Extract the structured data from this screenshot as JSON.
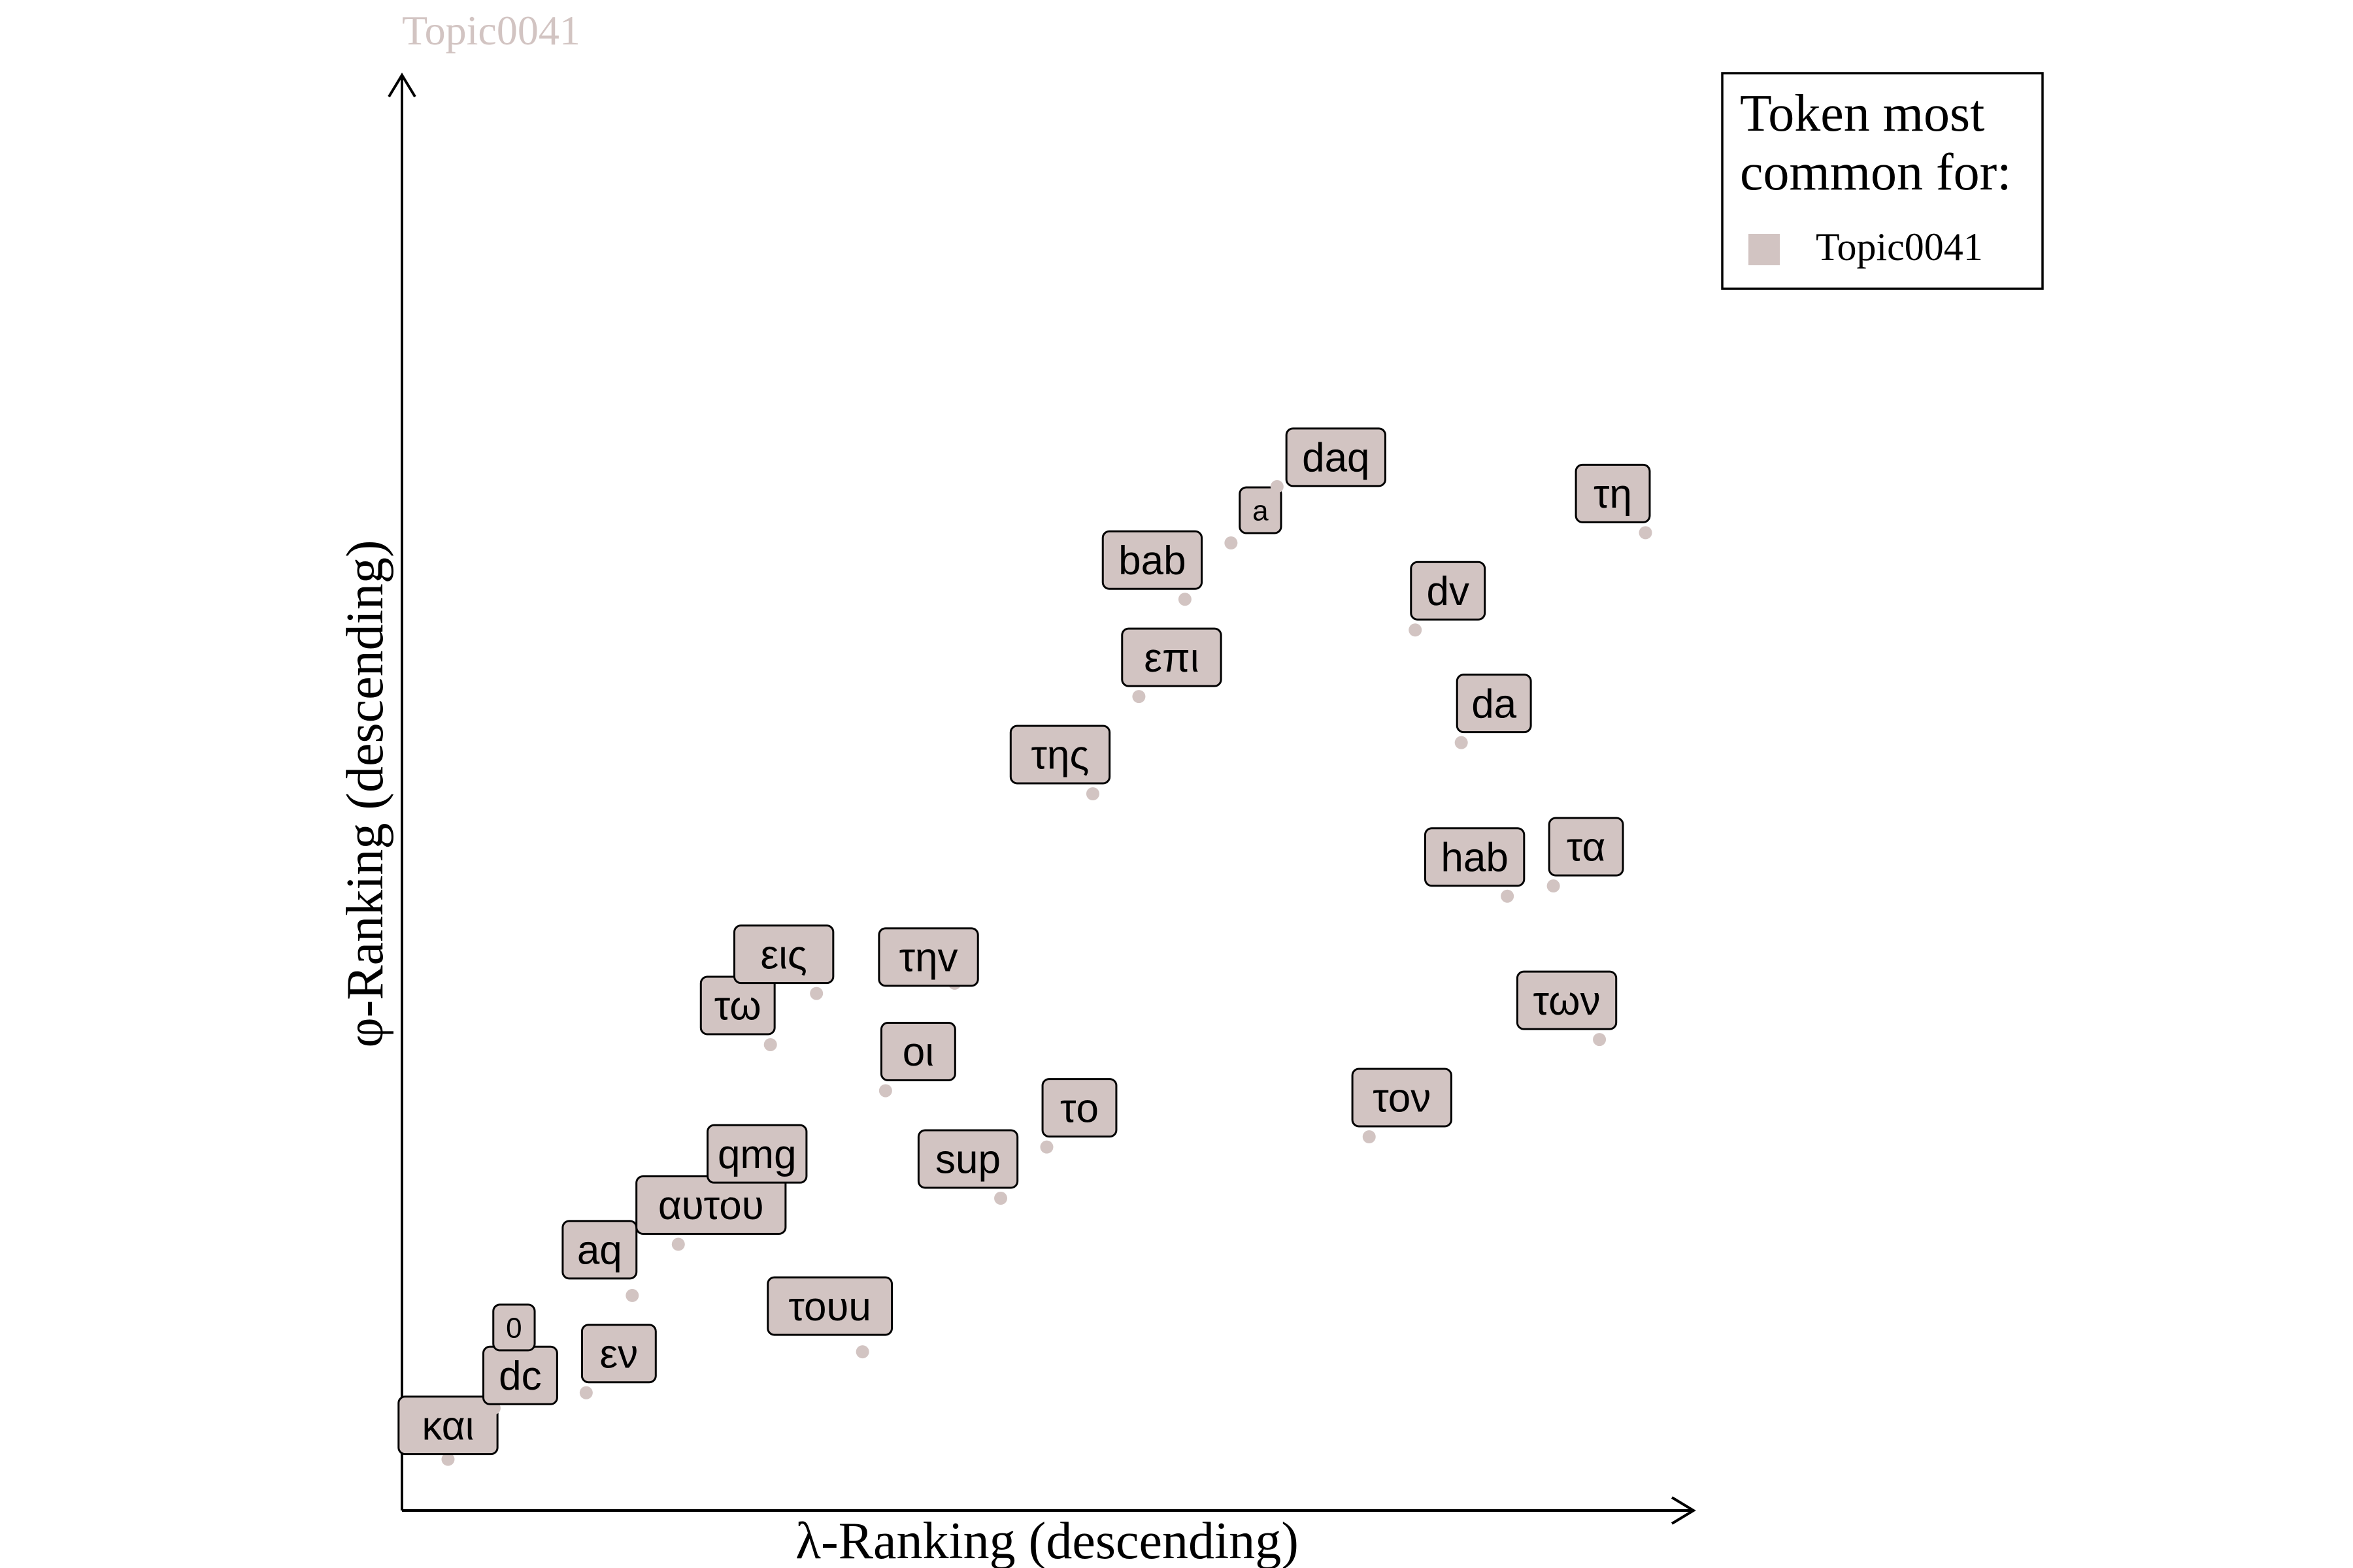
{
  "chart_data": {
    "type": "scatter",
    "title": "Topic0041",
    "xlabel": "λ-Ranking (descending)",
    "ylabel": "φ-Ranking (descending)",
    "xlim": [
      0,
      28
    ],
    "ylim": [
      0,
      28
    ],
    "grid": false,
    "legend": {
      "title_lines": [
        "Token most",
        "common for:"
      ],
      "placement": "top-right",
      "entries": [
        {
          "label": "Topic0041",
          "color": "#d2c4c2"
        }
      ]
    },
    "series": [
      {
        "name": "Topic0041",
        "color": "#d2c4c2",
        "points": [
          {
            "token": "και",
            "x": 1,
            "y": 1
          },
          {
            "token": "dc",
            "x": 2,
            "y": 2
          },
          {
            "token": "0",
            "x": 3,
            "y": 3
          },
          {
            "token": "εν",
            "x": 4,
            "y": 2.3
          },
          {
            "token": "aq",
            "x": 5,
            "y": 4.2
          },
          {
            "token": "αυτου",
            "x": 6,
            "y": 5.2
          },
          {
            "token": "qmg",
            "x": 7,
            "y": 6.2
          },
          {
            "token": "τω",
            "x": 8,
            "y": 9.1
          },
          {
            "token": "εις",
            "x": 9,
            "y": 10.1
          },
          {
            "token": "τουu",
            "x": 10,
            "y": 3.1
          },
          {
            "token": "οι",
            "x": 10.5,
            "y": 8.2
          },
          {
            "token": "τηv",
            "x": 12,
            "y": 10.3
          },
          {
            "token": "sup",
            "x": 13,
            "y": 6.1
          },
          {
            "token": "της",
            "x": 15,
            "y": 14
          },
          {
            "token": "τo",
            "x": 14,
            "y": 7.1
          },
          {
            "token": "επι",
            "x": 16,
            "y": 15.9
          },
          {
            "token": "bab",
            "x": 17,
            "y": 17.8
          },
          {
            "token": "a",
            "x": 18,
            "y": 18.9
          },
          {
            "token": "daq",
            "x": 19,
            "y": 20
          },
          {
            "token": "τον",
            "x": 21,
            "y": 7.3
          },
          {
            "token": "dv",
            "x": 22,
            "y": 17.2
          },
          {
            "token": "da",
            "x": 23,
            "y": 15
          },
          {
            "token": "hab",
            "x": 24,
            "y": 12
          },
          {
            "token": "τα",
            "x": 25,
            "y": 12.2
          },
          {
            "token": "των",
            "x": 26,
            "y": 9.2
          },
          {
            "token": "τη",
            "x": 27,
            "y": 19.1
          }
        ]
      }
    ]
  }
}
